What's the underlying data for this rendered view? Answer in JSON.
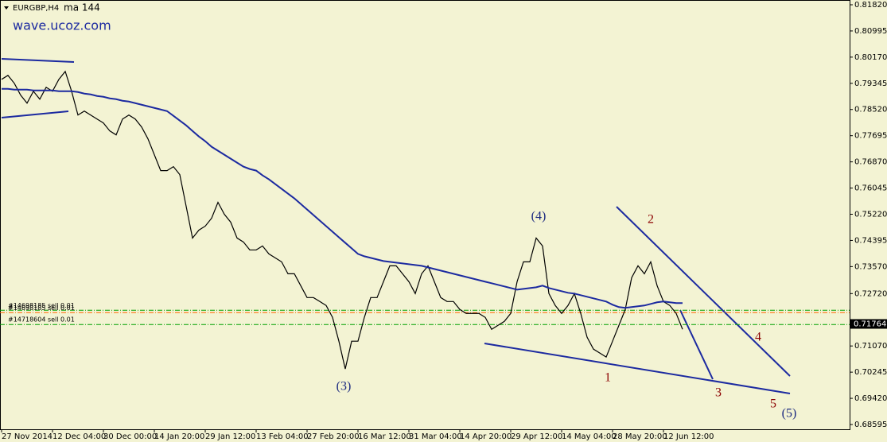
{
  "chart_data": {
    "type": "line",
    "title": "EURGBP,H4",
    "subtitle": "ma 144",
    "watermark": "wave.ucoz.com",
    "categories": [
      "27 Nov 2014",
      null,
      null,
      null,
      null,
      null,
      null,
      null,
      "12 Dec 04:00",
      null,
      null,
      null,
      null,
      null,
      null,
      null,
      "30 Dec 00:00",
      null,
      null,
      null,
      null,
      null,
      null,
      null,
      "14 Jan 20:00",
      null,
      null,
      null,
      null,
      null,
      null,
      null,
      "29 Jan 12:00",
      null,
      null,
      null,
      null,
      null,
      null,
      null,
      "13 Feb 04:00",
      null,
      null,
      null,
      null,
      null,
      null,
      null,
      "27 Feb 20:00",
      null,
      null,
      null,
      null,
      null,
      null,
      null,
      "16 Mar 12:00",
      null,
      null,
      null,
      null,
      null,
      null,
      null,
      "31 Mar 04:00",
      null,
      null,
      null,
      null,
      null,
      null,
      null,
      "14 Apr 20:00",
      null,
      null,
      null,
      null,
      null,
      null,
      null,
      "29 Apr 12:00",
      null,
      null,
      null,
      null,
      null,
      null,
      null,
      "14 May 04:00",
      null,
      null,
      null,
      null,
      null,
      null,
      null,
      "28 May 20:00",
      null,
      null,
      null,
      null,
      null,
      null,
      null,
      "12 Jun 12:00",
      null,
      null,
      null
    ],
    "series": [
      {
        "name": "EURGBP",
        "color": "#000000",
        "values": [
          0.7947,
          0.79595,
          0.79345,
          0.7897,
          0.7872,
          0.79095,
          0.78845,
          0.7922,
          0.79095,
          0.7947,
          0.7972,
          0.79095,
          0.78345,
          0.7847,
          0.78345,
          0.7822,
          0.78095,
          0.77845,
          0.7772,
          0.7822,
          0.78345,
          0.7822,
          0.7797,
          0.77595,
          0.77095,
          0.76595,
          0.76595,
          0.7672,
          0.7647,
          0.7547,
          0.7447,
          0.7472,
          0.74845,
          0.75095,
          0.75595,
          0.7522,
          0.7497,
          0.7447,
          0.74345,
          0.74095,
          0.74095,
          0.7422,
          0.7397,
          0.73845,
          0.7372,
          0.73345,
          0.73345,
          0.7297,
          0.72595,
          0.72595,
          0.7247,
          0.72345,
          0.7197,
          0.7122,
          0.70345,
          0.7122,
          0.7122,
          0.7197,
          0.72595,
          0.72595,
          0.73095,
          0.73595,
          0.73595,
          0.73345,
          0.73095,
          0.7272,
          0.73345,
          0.73595,
          0.73095,
          0.72595,
          0.7247,
          0.7247,
          0.7222,
          0.72095,
          0.72095,
          0.72095,
          0.7197,
          0.71595,
          0.7172,
          0.71845,
          0.72095,
          0.73095,
          0.7372,
          0.7372,
          0.7447,
          0.7422,
          0.7272,
          0.72345,
          0.72095,
          0.72345,
          0.7272,
          0.72095,
          0.71345,
          0.7097,
          0.70845,
          0.7072,
          0.7122,
          0.7172,
          0.7222,
          0.7322,
          0.73595,
          0.73345,
          0.7372,
          0.7297,
          0.7247,
          0.72345,
          0.72095,
          0.71595
        ]
      },
      {
        "name": "ma 144",
        "color": "#1c2aa0",
        "values": [
          0.7917,
          0.7917,
          0.79145,
          0.79145,
          0.79145,
          0.7912,
          0.7912,
          0.7912,
          0.7912,
          0.79095,
          0.79095,
          0.79095,
          0.7907,
          0.7902,
          0.78995,
          0.78945,
          0.7892,
          0.7887,
          0.78845,
          0.78795,
          0.7877,
          0.7872,
          0.7867,
          0.7862,
          0.7857,
          0.7852,
          0.7847,
          0.7832,
          0.7817,
          0.7802,
          0.77845,
          0.7767,
          0.7752,
          0.77345,
          0.7722,
          0.77095,
          0.7697,
          0.76845,
          0.7672,
          0.76645,
          0.76595,
          0.76445,
          0.7632,
          0.7617,
          0.7602,
          0.7587,
          0.7572,
          0.75545,
          0.7537,
          0.75195,
          0.7502,
          0.74845,
          0.7467,
          0.74495,
          0.7432,
          0.74145,
          0.7397,
          0.73895,
          0.73845,
          0.73795,
          0.73745,
          0.7372,
          0.73695,
          0.7367,
          0.73645,
          0.7362,
          0.73595,
          0.73545,
          0.73495,
          0.73445,
          0.73395,
          0.73345,
          0.73295,
          0.73245,
          0.73195,
          0.73145,
          0.73095,
          0.73045,
          0.72995,
          0.72945,
          0.72895,
          0.72845,
          0.7287,
          0.72895,
          0.7292,
          0.7297,
          0.72895,
          0.72845,
          0.72795,
          0.72745,
          0.7272,
          0.7267,
          0.7262,
          0.7257,
          0.7252,
          0.7247,
          0.7237,
          0.72295,
          0.7227,
          0.72295,
          0.7232,
          0.72345,
          0.72395,
          0.72445,
          0.7247,
          0.72445,
          0.7242,
          0.7242
        ]
      }
    ],
    "ylim": [
      0.68445,
      0.8197
    ],
    "yticks": [
      {
        "value": 0.8182,
        "label": "0.81820"
      },
      {
        "value": 0.80995,
        "label": "0.80995"
      },
      {
        "value": 0.8017,
        "label": "0.80170"
      },
      {
        "value": 0.79345,
        "label": "0.79345"
      },
      {
        "value": 0.7852,
        "label": "0.78520"
      },
      {
        "value": 0.77695,
        "label": "0.77695"
      },
      {
        "value": 0.7687,
        "label": "0.76870"
      },
      {
        "value": 0.76045,
        "label": "0.76045"
      },
      {
        "value": 0.7522,
        "label": "0.75220"
      },
      {
        "value": 0.74395,
        "label": "0.74395"
      },
      {
        "value": 0.7357,
        "label": "0.73570"
      },
      {
        "value": 0.7272,
        "label": "0.72720"
      },
      {
        "value": 0.7107,
        "label": "0.71070"
      },
      {
        "value": 0.70245,
        "label": "0.70245"
      },
      {
        "value": 0.6942,
        "label": "0.69420"
      },
      {
        "value": 0.68595,
        "label": "0.68595"
      }
    ],
    "levels": [
      {
        "label": "#14698185 sell 0.01",
        "value": 0.72195,
        "color": "#00a000"
      },
      {
        "label": "#14698185 sell 0.01",
        "value": 0.7212,
        "color": "#ff6600"
      },
      {
        "label": "#14718604 sell 0.01",
        "value": 0.71745,
        "color": "#00a000"
      }
    ],
    "last_price": {
      "value": 0.71764,
      "label": "0.71764"
    },
    "wave_labels": [
      "(3)",
      "(4)",
      "1",
      "2",
      "3",
      "4",
      "5",
      "(5)"
    ]
  }
}
